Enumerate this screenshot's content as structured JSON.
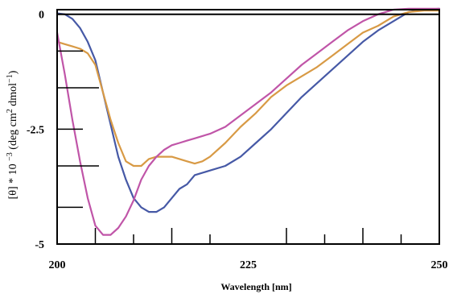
{
  "chart_data": {
    "type": "line",
    "title": "",
    "xlabel": "Wavelength [nm]",
    "ylabel": "[θ] * 10 −3 (deg cm2 dmol−1)",
    "xlim": [
      200,
      250
    ],
    "ylim": [
      -5,
      0.1
    ],
    "x_ticks": [
      {
        "value": 200,
        "label": "200"
      },
      {
        "value": 225,
        "label": "225"
      },
      {
        "value": 250,
        "label": "250"
      }
    ],
    "y_ticks": [
      {
        "value": 0,
        "label": "0"
      },
      {
        "value": -2.5,
        "label": "-2.5"
      },
      {
        "value": -5,
        "label": "-5"
      }
    ],
    "y_minor_ticks": [
      -0.8,
      -1.6,
      -2.5,
      -3.3,
      -4.2
    ],
    "x_minor_ticks": [
      205,
      210,
      215,
      220,
      230,
      235,
      240,
      245
    ],
    "grid": false,
    "zero_line": true,
    "series": [
      {
        "color": "#4659a6",
        "x": [
          200,
          201,
          202,
          203,
          204,
          205,
          206,
          207,
          208,
          209,
          210,
          211,
          212,
          213,
          214,
          215,
          216,
          217,
          218,
          219,
          220,
          222,
          224,
          226,
          228,
          230,
          232,
          234,
          236,
          238,
          240,
          242,
          244,
          246,
          248,
          250
        ],
        "y": [
          0.02,
          0.0,
          -0.1,
          -0.3,
          -0.6,
          -1.0,
          -1.7,
          -2.4,
          -3.1,
          -3.6,
          -4.0,
          -4.2,
          -4.3,
          -4.3,
          -4.2,
          -4.0,
          -3.8,
          -3.7,
          -3.5,
          -3.45,
          -3.4,
          -3.3,
          -3.1,
          -2.8,
          -2.5,
          -2.15,
          -1.8,
          -1.5,
          -1.2,
          -0.9,
          -0.6,
          -0.35,
          -0.15,
          0.05,
          0.1,
          0.12
        ]
      },
      {
        "color": "#d89a45",
        "x": [
          200,
          201,
          202,
          203,
          204,
          205,
          206,
          207,
          208,
          209,
          210,
          211,
          212,
          213,
          214,
          215,
          216,
          217,
          218,
          219,
          220,
          222,
          224,
          226,
          228,
          230,
          232,
          234,
          236,
          238,
          240,
          242,
          244,
          246,
          248,
          250
        ],
        "y": [
          -0.6,
          -0.65,
          -0.7,
          -0.75,
          -0.85,
          -1.1,
          -1.7,
          -2.3,
          -2.8,
          -3.2,
          -3.3,
          -3.3,
          -3.15,
          -3.1,
          -3.1,
          -3.1,
          -3.15,
          -3.2,
          -3.25,
          -3.2,
          -3.1,
          -2.8,
          -2.45,
          -2.15,
          -1.8,
          -1.55,
          -1.35,
          -1.15,
          -0.9,
          -0.65,
          -0.4,
          -0.25,
          -0.05,
          0.05,
          0.08,
          0.08
        ]
      },
      {
        "color": "#c055a8",
        "x": [
          200,
          201,
          202,
          203,
          204,
          205,
          206,
          207,
          208,
          209,
          210,
          211,
          212,
          213,
          214,
          215,
          216,
          217,
          218,
          219,
          220,
          222,
          224,
          226,
          228,
          230,
          232,
          234,
          236,
          238,
          240,
          242,
          244,
          246,
          248,
          250
        ],
        "y": [
          -0.4,
          -1.3,
          -2.3,
          -3.2,
          -4.0,
          -4.6,
          -4.8,
          -4.8,
          -4.65,
          -4.4,
          -4.05,
          -3.6,
          -3.3,
          -3.1,
          -2.95,
          -2.85,
          -2.8,
          -2.75,
          -2.7,
          -2.65,
          -2.6,
          -2.45,
          -2.2,
          -1.95,
          -1.7,
          -1.4,
          -1.1,
          -0.85,
          -0.6,
          -0.35,
          -0.15,
          0.0,
          0.1,
          0.12,
          0.12,
          0.12
        ]
      }
    ]
  }
}
